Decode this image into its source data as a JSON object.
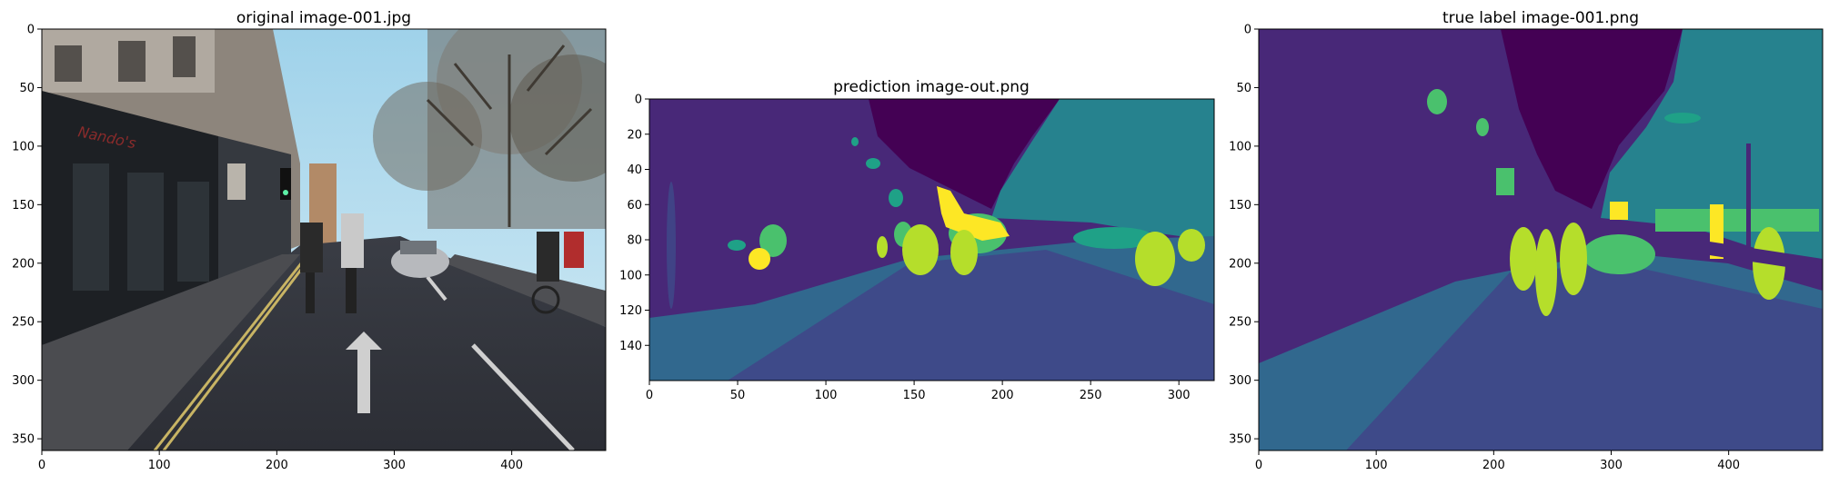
{
  "panels": [
    {
      "title": "original image-001.jpg",
      "x_ticks": [
        "0",
        "100",
        "200",
        "300",
        "400"
      ],
      "y_ticks": [
        "0",
        "50",
        "100",
        "150",
        "200",
        "250",
        "300",
        "350"
      ],
      "image_kind": "street-photo"
    },
    {
      "title": "prediction image-out.png",
      "x_ticks": [
        "0",
        "50",
        "100",
        "150",
        "200",
        "250",
        "300"
      ],
      "y_ticks": [
        "0",
        "20",
        "40",
        "60",
        "80",
        "100",
        "120",
        "140"
      ],
      "image_kind": "segmentation-prediction"
    },
    {
      "title": "true label image-001.png",
      "x_ticks": [
        "0",
        "100",
        "200",
        "300",
        "400"
      ],
      "y_ticks": [
        "0",
        "50",
        "100",
        "150",
        "200",
        "250",
        "300",
        "350"
      ],
      "image_kind": "segmentation-label"
    }
  ],
  "colors": {
    "sky": "#440154",
    "building": "#482878",
    "tree": "#26828e",
    "sidewalk": "#31688e",
    "road": "#3e4a89",
    "car": "#4ac16d",
    "pedestrian": "#fde725",
    "cyclist": "#b5de2b",
    "sign": "#1fa187"
  }
}
